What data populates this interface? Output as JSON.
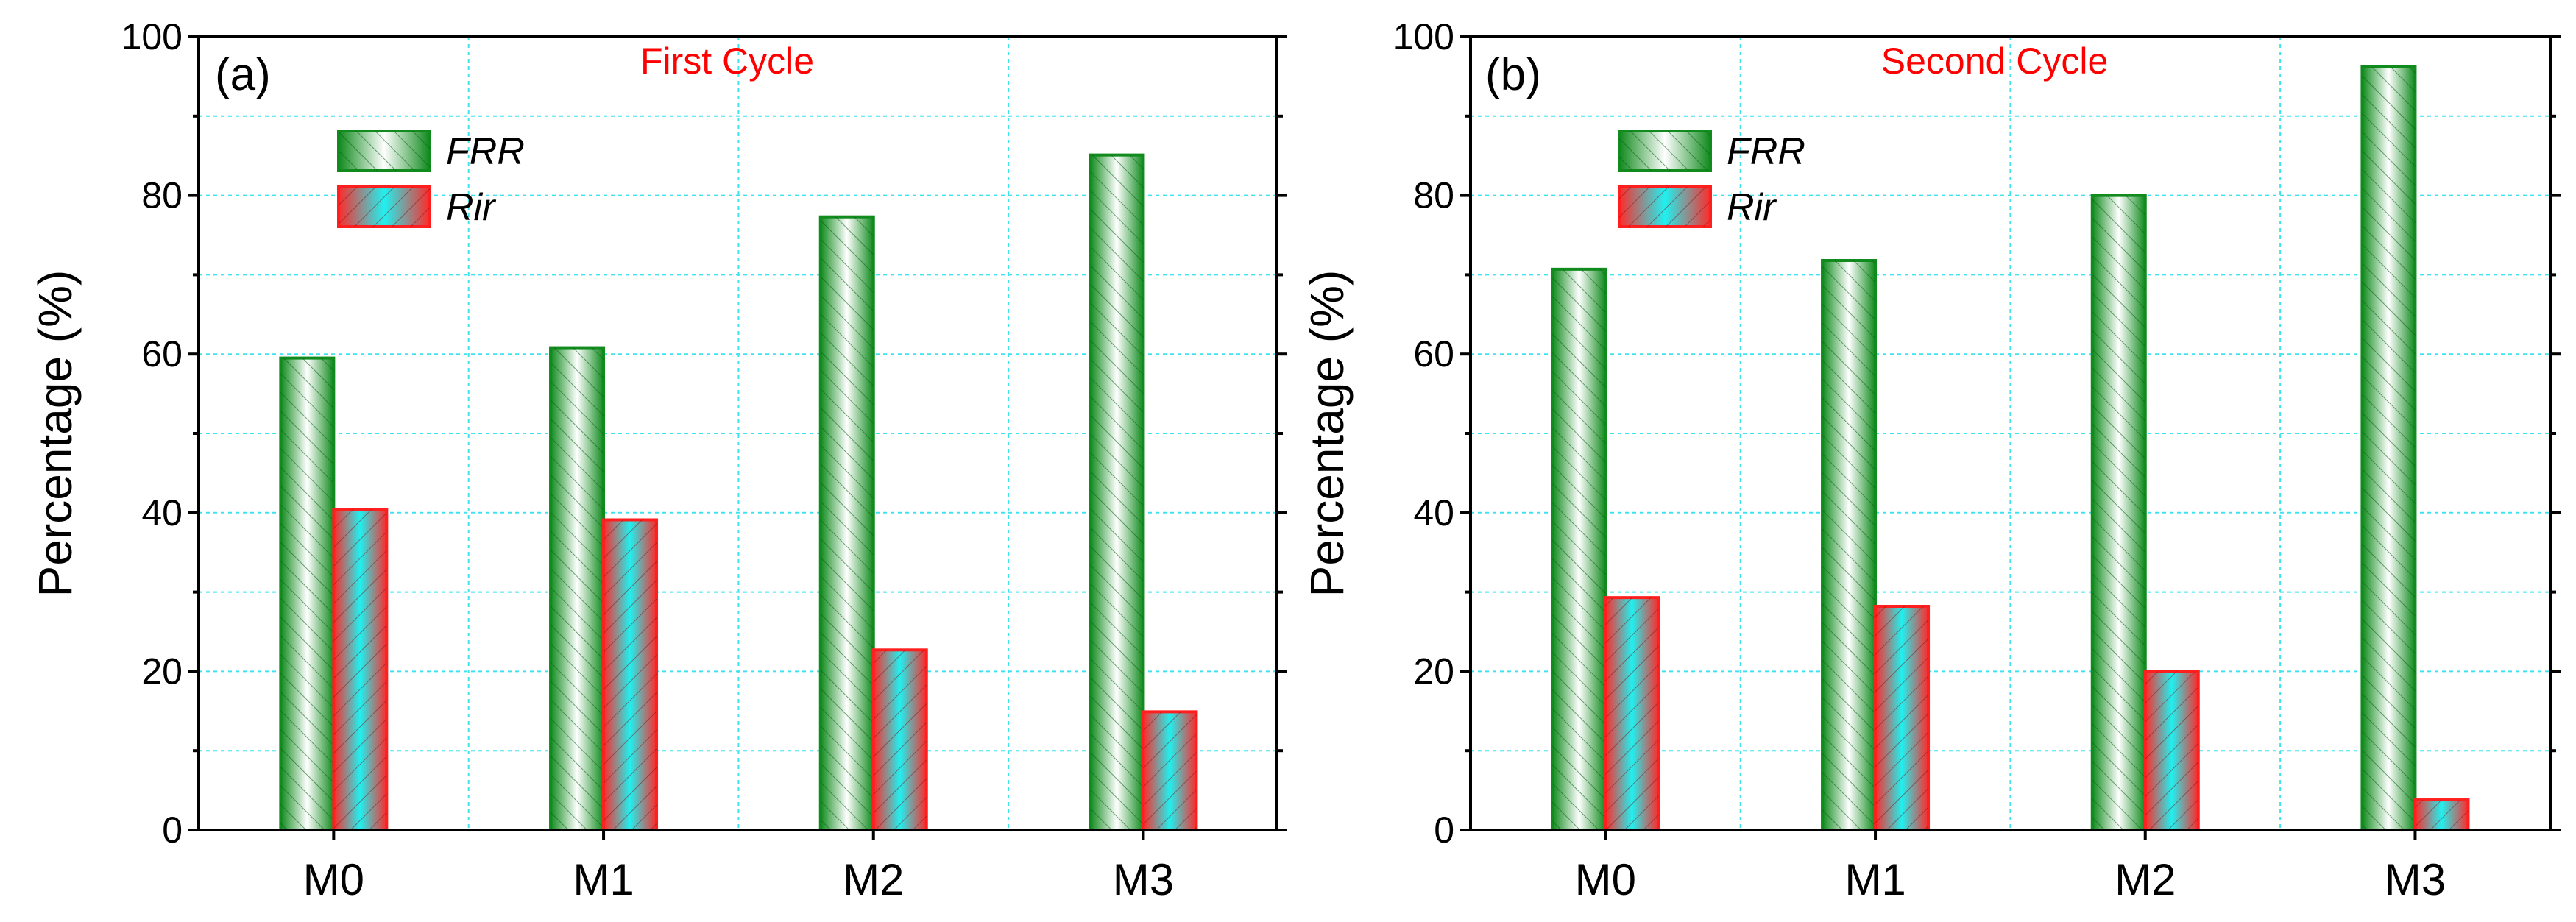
{
  "colors": {
    "frr_stroke": "#118a1e",
    "frr_dark": "#0f8a1c",
    "frr_light": "#ffffff",
    "rir_stroke": "#ff1f1f",
    "rir_dark": "#ff2a2a",
    "rir_light": "#20f0f0",
    "grid": "#3fe3f0",
    "title": "#ff0000"
  },
  "chart_data": [
    {
      "type": "bar",
      "panel_label": "(a)",
      "title": "First Cycle",
      "xlabel": "",
      "ylabel": "Percentage (%)",
      "ylim": [
        0,
        100
      ],
      "yticks": [
        0,
        20,
        40,
        60,
        80,
        100
      ],
      "ytick_labels": [
        "0",
        "20",
        "40",
        "60",
        "80",
        "100"
      ],
      "grid": true,
      "legend_position": "top-left",
      "categories": [
        "M0",
        "M1",
        "M2",
        "M3"
      ],
      "series": [
        {
          "name": "FRR",
          "values": [
            59.5,
            60.8,
            77.3,
            85.1
          ]
        },
        {
          "name": "Rir",
          "values": [
            40.4,
            39.1,
            22.7,
            14.9
          ]
        }
      ]
    },
    {
      "type": "bar",
      "panel_label": "(b)",
      "title": "Second Cycle",
      "xlabel": "",
      "ylabel": "Percentage (%)",
      "ylim": [
        0,
        100
      ],
      "yticks": [
        0,
        20,
        40,
        60,
        80,
        100
      ],
      "ytick_labels": [
        "0",
        "20",
        "40",
        "60",
        "80",
        "100"
      ],
      "grid": true,
      "legend_position": "top-left",
      "categories": [
        "M0",
        "M1",
        "M2",
        "M3"
      ],
      "series": [
        {
          "name": "FRR",
          "values": [
            70.7,
            71.8,
            80.0,
            96.2
          ]
        },
        {
          "name": "Rir",
          "values": [
            29.3,
            28.2,
            20.0,
            3.8
          ]
        }
      ]
    }
  ]
}
